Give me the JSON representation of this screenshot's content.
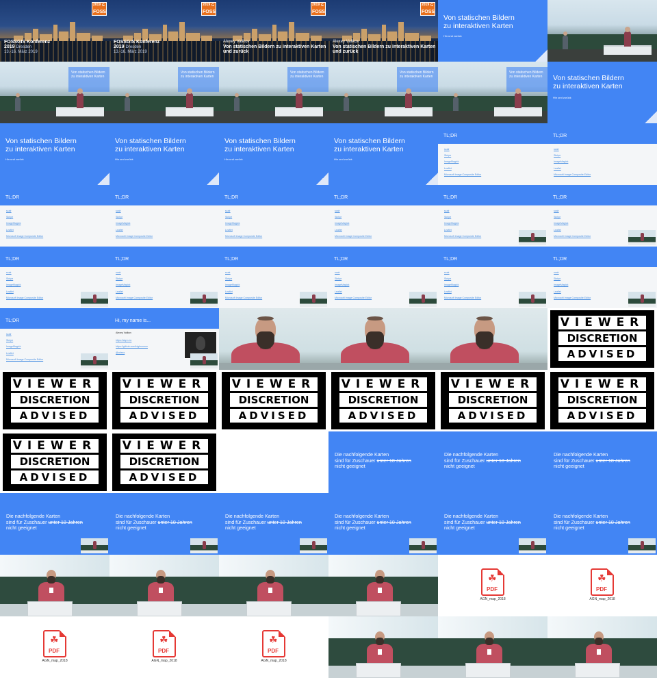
{
  "title_card": {
    "logo_year": "2019",
    "logo_text": "FOSS",
    "logo_letter": "G",
    "conference_line1": "FOSSGIS Konferenz",
    "conference_line2": "2019",
    "conference_city": "Dresden",
    "conference_dates": "13.-16. März 2019",
    "author": "Alexey Valikov",
    "talk_title_line1": "Von statischen Bildern zu interaktiven Karten",
    "talk_title_line2": "und zurück"
  },
  "title_slide": {
    "title_line1": "Von statischen Bildern",
    "title_line2": "zu interaktiven Karten",
    "subtitle": "Hin und zurück"
  },
  "tldr_slide": {
    "heading": "TL;DR",
    "items": [
      "scalr",
      "Skripe",
      "ImageMagick",
      "Leaflet",
      "Microsoft Image Composite Editor"
    ]
  },
  "name_slide": {
    "heading": "Hi, my name is...",
    "name": "Alexey Valikov",
    "links": [
      "https://aty.ru.io",
      "https://github.com/highsource",
      "@orless"
    ]
  },
  "viewer_discretion": {
    "word1": "VIEWER",
    "word2": "DISCRETION",
    "word3": "ADVISED"
  },
  "warning_slide": {
    "line1": "Die nachfolgende Karten",
    "line2_prefix": "sind für Zuschauer",
    "line2_struck": "unter 18 Jahren",
    "line3": "nicht geeignet"
  },
  "pdf_file": {
    "icon_label": "PDF",
    "filename": "AGN_map_2018"
  },
  "colors": {
    "slide_blue": "#4285f4",
    "link_blue": "#4a90e2",
    "pdf_red": "#e53935",
    "logo_orange": "#e8701d"
  },
  "layout": {
    "columns": 6,
    "rows": 11,
    "tiles": [
      "title",
      "title",
      "title-author",
      "title-author",
      "blue-title",
      "hall",
      "hall-proj",
      "hall-proj",
      "hall-proj",
      "hall-proj",
      "hall-proj",
      "blue-title-alt",
      "blue-title",
      "blue-title",
      "blue-title",
      "blue-title",
      "tldr-blue",
      "tldr",
      "tldr",
      "tldr",
      "tldr",
      "tldr",
      "tldr-pip",
      "tldr-pip",
      "tldr-pip",
      "tldr-pip",
      "tldr-pip",
      "tldr-pip",
      "tldr-pip",
      "tldr-pip",
      "tldr-pip",
      "name",
      "close",
      "close",
      "close",
      "vda",
      "vda",
      "vda",
      "vda",
      "vda",
      "vda",
      "vda",
      "vda",
      "vda",
      "blank",
      "warn",
      "warn",
      "warn",
      "warn-pip",
      "warn-pip",
      "warn-pip",
      "warn-pip",
      "warn-pip",
      "warn-pip",
      "lect",
      "lect",
      "lect",
      "lect",
      "pdf",
      "pdf",
      "pdf",
      "pdf",
      "pdf",
      "lect",
      "lect",
      "lect"
    ]
  }
}
